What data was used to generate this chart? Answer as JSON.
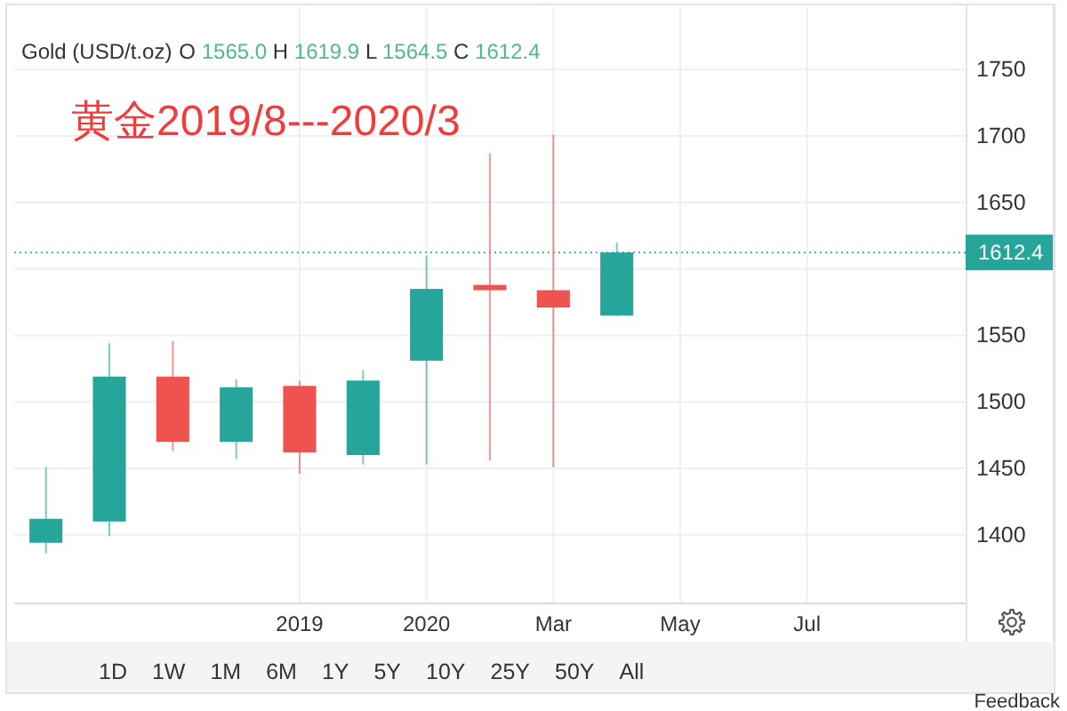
{
  "chart_data": {
    "type": "candlestick",
    "title": "Gold (USD/t.oz)",
    "subtitle": "O 1565.0 H 1619.9 L 1564.5 C 1612.4",
    "annotations": [
      "黄金2019/8---2020/3",
      "1D",
      "1W",
      "1M",
      "6M",
      "1Y",
      "5Y",
      "10Y",
      "25Y",
      "50Y",
      "All",
      "Feedback"
    ],
    "categories": [
      null,
      null,
      null,
      null,
      "2019",
      null,
      "2020",
      null,
      "Mar",
      null,
      "May",
      null,
      "Jul",
      null,
      null
    ],
    "ohlc": [
      [
        1394,
        1451,
        1386,
        1412
      ],
      [
        1410,
        1544,
        1399,
        1519
      ],
      [
        1519,
        1546,
        1463,
        1470
      ],
      [
        1470,
        1517,
        1457,
        1511
      ],
      [
        1512,
        1516,
        1446,
        1462
      ],
      [
        1460,
        1524,
        1453,
        1516
      ],
      [
        1531,
        1610,
        1453,
        1585
      ],
      [
        1588,
        1687,
        1456,
        1584
      ],
      [
        1584,
        1701,
        1451,
        1571
      ],
      [
        1565.0,
        1619.9,
        1564.5,
        1612.4
      ],
      null,
      null,
      null,
      null,
      null
    ],
    "colors": [
      "#26a69a",
      "#26a69a",
      "#ef5350",
      "#26a69a",
      "#ef5350",
      "#26a69a",
      "#26a69a",
      "#ef5350",
      "#ef5350",
      "#26a69a",
      null,
      null,
      null,
      null,
      null
    ],
    "ylim": [
      1349,
      1797
    ],
    "yticks": [
      1400,
      1450,
      1500,
      1550,
      {
        "value": 1600,
        "label": null
      },
      1650,
      1700,
      1750
    ],
    "grid": true,
    "ref_lines": [
      {
        "axis": "y",
        "value": 1612.4,
        "label": "1612.4",
        "color": "#26a69a",
        "line_style": "dotted"
      }
    ]
  }
}
